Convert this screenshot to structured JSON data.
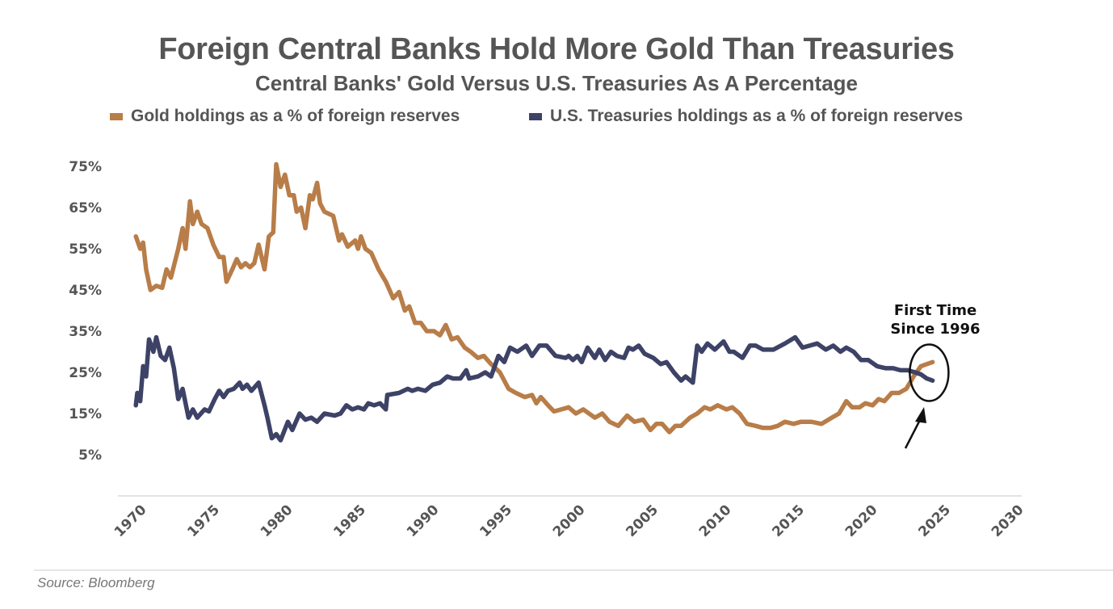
{
  "chart_data": {
    "type": "line",
    "title": "Foreign Central Banks Hold More Gold Than Treasuries",
    "subtitle": "Central Banks' Gold Versus U.S. Treasuries As A Percentage",
    "xlabel": "",
    "ylabel": "",
    "xlim": [
      1970,
      2030
    ],
    "ylim": [
      0,
      78
    ],
    "x_ticks": [
      "1970",
      "1975",
      "1980",
      "1985",
      "1990",
      "1995",
      "2000",
      "2005",
      "2010",
      "2015",
      "2020",
      "2025",
      "2030"
    ],
    "x_tick_values": [
      1970,
      1975,
      1980,
      1985,
      1990,
      1995,
      2000,
      2005,
      2010,
      2015,
      2020,
      2025,
      2030
    ],
    "y_ticks": [
      "75%",
      "65%",
      "55%",
      "45%",
      "35%",
      "25%",
      "15%",
      "5%"
    ],
    "y_tick_values": [
      75,
      65,
      55,
      45,
      35,
      25,
      15,
      5
    ],
    "grid": false,
    "legend_position": "top-center",
    "series": [
      {
        "name": "Gold holdings as a % of foreign reserves",
        "color": "#B87D48",
        "x": [
          1969.9,
          1970.2,
          1970.4,
          1970.6,
          1970.9,
          1971.3,
          1971.7,
          1972.0,
          1972.3,
          1972.8,
          1973.1,
          1973.3,
          1973.6,
          1973.8,
          1974.1,
          1974.4,
          1974.8,
          1975.2,
          1975.6,
          1975.9,
          1976.1,
          1976.5,
          1976.8,
          1977.1,
          1977.4,
          1977.7,
          1978.0,
          1978.3,
          1978.7,
          1979.0,
          1979.3,
          1979.5,
          1979.8,
          1980.1,
          1980.4,
          1980.7,
          1980.9,
          1981.2,
          1981.5,
          1981.8,
          1982.0,
          1982.3,
          1982.5,
          1982.8,
          1983.4,
          1983.8,
          1984.0,
          1984.4,
          1984.9,
          1985.1,
          1985.3,
          1985.6,
          1986.0,
          1986.5,
          1987.0,
          1987.5,
          1987.9,
          1988.3,
          1988.6,
          1989.0,
          1989.4,
          1989.8,
          1990.3,
          1990.7,
          1991.1,
          1991.5,
          1991.9,
          1992.4,
          1992.8,
          1993.3,
          1993.7,
          1994.2,
          1994.8,
          1995.4,
          1995.9,
          1996.5,
          1997.0,
          1997.3,
          1997.6,
          1998.1,
          1998.5,
          1999.0,
          1999.5,
          2000.0,
          2000.5,
          2001.3,
          2001.8,
          2002.3,
          2002.9,
          2003.5,
          2004.0,
          2004.6,
          2005.1,
          2005.5,
          2005.9,
          2006.4,
          2006.8,
          2007.2,
          2007.8,
          2008.3,
          2008.8,
          2009.2,
          2009.7,
          2010.3,
          2010.7,
          2011.2,
          2011.7,
          2012.3,
          2012.8,
          2013.3,
          2013.8,
          2014.3,
          2014.9,
          2015.4,
          2016.1,
          2016.8,
          2017.5,
          2018.0,
          2018.5,
          2018.9,
          2019.4,
          2019.8,
          2020.3,
          2020.7,
          2021.1,
          2021.6,
          2022.1,
          2022.6,
          2023.1,
          2023.6,
          2024.0,
          2024.4
        ],
        "values": [
          58,
          55,
          56.5,
          50,
          45,
          46,
          45.5,
          50,
          48,
          55,
          60,
          55,
          66.5,
          61,
          64,
          61,
          60,
          56,
          53,
          53,
          47,
          50,
          52.5,
          50.5,
          51.5,
          50.5,
          51.5,
          56,
          50,
          58,
          59,
          75.5,
          70,
          73,
          68,
          68,
          64,
          65,
          60,
          68,
          67,
          71,
          66,
          64,
          63,
          57,
          58.5,
          55.5,
          57,
          55,
          58,
          55,
          54,
          50,
          47,
          43,
          44.5,
          40,
          41,
          37,
          37,
          35,
          35,
          34,
          36.5,
          33,
          33.5,
          31,
          30,
          28.5,
          29,
          27,
          25,
          21,
          20,
          19,
          19.5,
          17.5,
          19,
          17,
          15.5,
          16,
          16.5,
          15,
          16,
          14,
          15,
          13,
          12,
          14.5,
          13,
          13.5,
          11,
          12.5,
          12.5,
          10.5,
          12,
          12,
          14,
          15,
          16.5,
          16,
          17,
          16,
          16.5,
          15,
          12.5,
          12,
          11.5,
          11.5,
          12,
          13,
          12.5,
          13,
          13,
          12.5,
          14,
          15,
          18,
          16.5,
          16.5,
          17.5,
          17,
          18.5,
          18,
          20,
          20,
          21,
          24,
          26.5,
          27,
          27.5
        ]
      },
      {
        "name": "U.S. Treasuries holdings as a % of foreign reserves",
        "color": "#3D4266",
        "x": [
          1969.9,
          1970.0,
          1970.2,
          1970.4,
          1970.6,
          1970.8,
          1971.1,
          1971.3,
          1971.6,
          1971.9,
          1972.2,
          1972.5,
          1972.8,
          1973.1,
          1973.5,
          1973.8,
          1974.1,
          1974.6,
          1974.9,
          1975.3,
          1975.6,
          1975.9,
          1976.2,
          1976.6,
          1977.0,
          1977.2,
          1977.5,
          1977.8,
          1978.3,
          1978.7,
          1978.9,
          1979.2,
          1979.5,
          1979.8,
          1980.3,
          1980.6,
          1981.1,
          1981.5,
          1981.9,
          1982.3,
          1982.8,
          1983.5,
          1983.9,
          1984.3,
          1984.7,
          1985.1,
          1985.5,
          1985.8,
          1986.2,
          1986.6,
          1987.0,
          1987.1,
          1987.9,
          1988.5,
          1988.8,
          1989.2,
          1989.7,
          1990.2,
          1990.7,
          1991.2,
          1991.6,
          1992.1,
          1992.5,
          1992.7,
          1993.3,
          1993.8,
          1994.2,
          1994.7,
          1995.1,
          1995.5,
          1996.0,
          1996.6,
          1997.0,
          1997.5,
          1998.0,
          1998.6,
          1999.3,
          1999.5,
          1999.8,
          2000.1,
          2000.4,
          2000.8,
          2001.3,
          2001.6,
          2002.0,
          2002.4,
          2002.8,
          2003.3,
          2003.6,
          2003.9,
          2004.3,
          2004.7,
          2005.3,
          2005.8,
          2006.2,
          2006.7,
          2007.2,
          2007.5,
          2008.0,
          2008.3,
          2008.6,
          2009.0,
          2009.5,
          2010.1,
          2010.5,
          2010.8,
          2011.4,
          2011.9,
          2012.3,
          2012.8,
          2013.5,
          2014.3,
          2015.0,
          2015.5,
          2016.0,
          2016.5,
          2017.1,
          2017.6,
          2018.1,
          2018.5,
          2019.0,
          2019.5,
          2020.0,
          2020.6,
          2021.2,
          2021.7,
          2022.2,
          2022.7,
          2023.2,
          2023.6,
          2024.0,
          2024.4
        ],
        "values": [
          17,
          20,
          18,
          26.5,
          24,
          33,
          30,
          33.5,
          29,
          28,
          31,
          26,
          18.5,
          21,
          14,
          16,
          14,
          16,
          15.5,
          18.5,
          20.5,
          19,
          20.5,
          21,
          22.5,
          21,
          22,
          20.5,
          22.5,
          17,
          14,
          9,
          10,
          8.5,
          13,
          11,
          15,
          13.5,
          14,
          13,
          15,
          14.5,
          15,
          17,
          16,
          16.5,
          16,
          17.5,
          17,
          17.5,
          16,
          19.5,
          20,
          21,
          20.5,
          21,
          20.5,
          22,
          22.5,
          24,
          23.5,
          23.5,
          25.5,
          23.5,
          24,
          25,
          24,
          29,
          27.5,
          31,
          30,
          31.5,
          29,
          31.5,
          31.5,
          29,
          28.5,
          29,
          28,
          29,
          27.5,
          31,
          28.5,
          30.5,
          28,
          30,
          29,
          28.5,
          31,
          30.5,
          31.5,
          29.5,
          28.5,
          27,
          27.5,
          25,
          23,
          24,
          22.5,
          31.5,
          30,
          32,
          30.5,
          32.5,
          30,
          30,
          28.5,
          31.5,
          31.5,
          30.5,
          30.5,
          32,
          33.5,
          31,
          31.5,
          32,
          30.5,
          31.5,
          30,
          31,
          30,
          28,
          28,
          26.5,
          26,
          26,
          25.5,
          25.5,
          25,
          24.5,
          23.5,
          23
        ]
      }
    ],
    "annotations": [
      {
        "text_line1": "First Time",
        "text_line2": "Since 1996",
        "x": 2024.0,
        "y": 25.5,
        "shape": "ellipse-with-arrow"
      }
    ]
  },
  "source": "Source: Bloomberg"
}
